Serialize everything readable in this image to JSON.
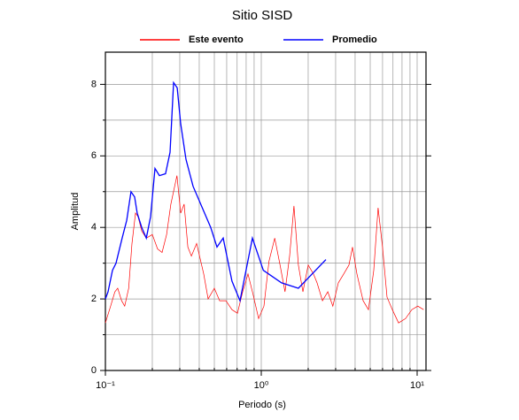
{
  "chart_data": {
    "type": "line",
    "title": "Sitio SISD",
    "xlabel": "Periodo (s)",
    "ylabel": "Amplitud",
    "xscale": "log",
    "xlim": [
      0.1,
      11.4
    ],
    "ylim": [
      0,
      8.9
    ],
    "xticks": [
      {
        "value": 0.1,
        "label": "10⁻¹"
      },
      {
        "value": 1,
        "label": "10⁰"
      },
      {
        "value": 10,
        "label": "10¹"
      }
    ],
    "yticks": [
      0,
      2,
      4,
      6,
      8
    ],
    "y_minor_ticks": [
      1,
      3,
      5,
      7
    ],
    "grid": true,
    "x_minor_grid": true,
    "legend": "top",
    "series": [
      {
        "name": "Este evento",
        "color": "#ff0000",
        "x": [
          0.1,
          0.108,
          0.115,
          0.12,
          0.127,
          0.133,
          0.141,
          0.148,
          0.156,
          0.162,
          0.171,
          0.183,
          0.2,
          0.216,
          0.231,
          0.247,
          0.263,
          0.288,
          0.304,
          0.32,
          0.338,
          0.356,
          0.385,
          0.427,
          0.456,
          0.5,
          0.541,
          0.593,
          0.649,
          0.703,
          0.76,
          0.822,
          0.889,
          0.962,
          1.04,
          1.12,
          1.22,
          1.32,
          1.42,
          1.52,
          1.62,
          1.73,
          1.85,
          2.0,
          2.16,
          2.28,
          2.47,
          2.67,
          2.88,
          3.12,
          3.38,
          3.65,
          3.85,
          4.11,
          4.5,
          4.87,
          5.27,
          5.62,
          6.0,
          6.41,
          6.93,
          7.6,
          8.43,
          9.25,
          10.1,
          11.0
        ],
        "values": [
          1.33,
          1.8,
          2.2,
          2.3,
          1.95,
          1.8,
          2.3,
          3.55,
          4.4,
          4.3,
          3.9,
          3.7,
          3.8,
          3.4,
          3.3,
          3.8,
          4.65,
          5.45,
          4.4,
          4.65,
          3.45,
          3.2,
          3.55,
          2.7,
          2.0,
          2.3,
          1.95,
          1.95,
          1.7,
          1.6,
          2.2,
          2.7,
          2.1,
          1.45,
          1.8,
          3.05,
          3.7,
          2.95,
          2.2,
          3.2,
          4.6,
          2.95,
          2.2,
          2.95,
          2.7,
          2.45,
          1.95,
          2.2,
          1.8,
          2.45,
          2.7,
          2.95,
          3.45,
          2.7,
          1.95,
          1.7,
          2.8,
          4.55,
          3.45,
          2.05,
          1.7,
          1.33,
          1.45,
          1.7,
          1.8,
          1.7
        ]
      },
      {
        "name": "Promedio",
        "color": "#0000ff",
        "x": [
          0.1,
          0.104,
          0.111,
          0.117,
          0.128,
          0.137,
          0.146,
          0.154,
          0.16,
          0.171,
          0.183,
          0.195,
          0.208,
          0.222,
          0.243,
          0.26,
          0.274,
          0.289,
          0.304,
          0.329,
          0.365,
          0.474,
          0.52,
          0.57,
          0.649,
          0.731,
          0.877,
          1.03,
          1.35,
          1.73,
          2.6
        ],
        "values": [
          2.0,
          2.2,
          2.8,
          3.0,
          3.7,
          4.2,
          5.0,
          4.85,
          4.4,
          4.0,
          3.7,
          4.3,
          5.65,
          5.45,
          5.5,
          6.1,
          8.05,
          7.9,
          6.9,
          5.9,
          5.15,
          4.0,
          3.45,
          3.7,
          2.5,
          1.95,
          3.7,
          2.8,
          2.45,
          2.3,
          3.1
        ]
      }
    ]
  }
}
